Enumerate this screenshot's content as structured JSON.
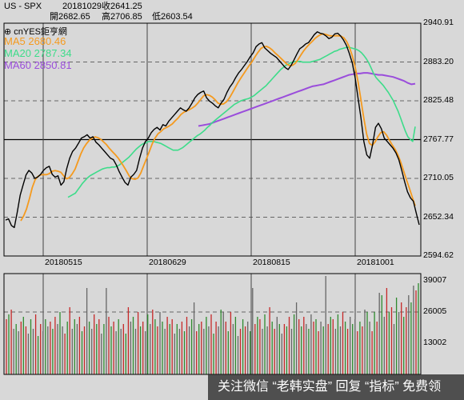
{
  "header": {
    "symbol": "US - SPX",
    "date": "20181029",
    "close": "收2641.25",
    "open": "開2682.65",
    "high": "高2706.85",
    "low": "低2603.54"
  },
  "brand": "⊕ cnYES鉅亨網",
  "watermark": "关注微信 “老韩实盘” 回复 “指标” 免费领",
  "chart_data": [
    {
      "type": "line",
      "y_ticks": [
        "2940.91",
        "2883.20",
        "2825.48",
        "2767.77",
        "2710.05",
        "2652.34",
        "2594.62"
      ],
      "x_ticks": [
        "20180515",
        "20180629",
        "20180815",
        "20181001"
      ],
      "ylim": [
        2594.62,
        2940.91
      ],
      "series": [
        {
          "name": "MA5",
          "value": "2680.46",
          "color": "#f59a1e"
        },
        {
          "name": "MA20",
          "value": "2787.34",
          "color": "#3ddc8a"
        },
        {
          "name": "MA60",
          "value": "2850.81",
          "color": "#9a4ddb"
        },
        {
          "name": "",
          "color": "#000000",
          "role": "price",
          "values": [
            2648,
            2650,
            2640,
            2637,
            2660,
            2685,
            2700,
            2715,
            2722,
            2718,
            2710,
            2712,
            2716,
            2722,
            2726,
            2728,
            2716,
            2712,
            2714,
            2700,
            2705,
            2725,
            2740,
            2750,
            2755,
            2762,
            2770,
            2772,
            2775,
            2770,
            2772,
            2764,
            2760,
            2755,
            2750,
            2745,
            2740,
            2738,
            2730,
            2720,
            2712,
            2704,
            2700,
            2712,
            2716,
            2722,
            2740,
            2755,
            2765,
            2770,
            2778,
            2783,
            2786,
            2782,
            2790,
            2788,
            2795,
            2800,
            2805,
            2810,
            2815,
            2812,
            2810,
            2815,
            2822,
            2830,
            2835,
            2838,
            2840,
            2830,
            2825,
            2822,
            2818,
            2815,
            2822,
            2828,
            2838,
            2846,
            2852,
            2860,
            2867,
            2872,
            2878,
            2884,
            2891,
            2897,
            2906,
            2910,
            2912,
            2904,
            2900,
            2896,
            2893,
            2890,
            2885,
            2880,
            2875,
            2872,
            2878,
            2886,
            2895,
            2903,
            2906,
            2910,
            2912,
            2918,
            2924,
            2928,
            2926,
            2925,
            2922,
            2918,
            2920,
            2925,
            2926,
            2922,
            2916,
            2908,
            2896,
            2882,
            2860,
            2830,
            2800,
            2765,
            2745,
            2740,
            2760,
            2786,
            2792,
            2784,
            2770,
            2765,
            2760,
            2755,
            2748,
            2738,
            2722,
            2705,
            2690,
            2681,
            2676,
            2658,
            2641
          ]
        },
        {
          "name": "",
          "color": "#3ddc8a",
          "role": "ma20",
          "values": [
            2682,
            2684,
            2686,
            2688,
            2693,
            2698,
            2703,
            2707,
            2711,
            2714,
            2716,
            2718,
            2720,
            2722,
            2724,
            2725,
            2726,
            2726,
            2727,
            2727,
            2728,
            2730,
            2733,
            2736,
            2739,
            2742,
            2746,
            2750,
            2754,
            2757,
            2760,
            2762,
            2763,
            2765,
            2765,
            2765,
            2764,
            2763,
            2762,
            2760,
            2758,
            2756,
            2754,
            2752,
            2752,
            2752,
            2754,
            2756,
            2759,
            2762,
            2765,
            2768,
            2771,
            2774,
            2776,
            2779,
            2782,
            2786,
            2789,
            2793,
            2796,
            2799,
            2802,
            2805,
            2808,
            2811,
            2814,
            2817,
            2820,
            2822,
            2824,
            2826,
            2827,
            2828,
            2829,
            2831,
            2833,
            2836,
            2839,
            2842,
            2845,
            2848,
            2852,
            2856,
            2860,
            2864,
            2868,
            2872,
            2875,
            2878,
            2880,
            2882,
            2883,
            2884,
            2884,
            2884,
            2883,
            2883,
            2883,
            2883,
            2884,
            2885,
            2886,
            2887,
            2889,
            2891,
            2893,
            2895,
            2897,
            2899,
            2900,
            2902,
            2903,
            2904,
            2905,
            2905,
            2904,
            2903,
            2902,
            2900,
            2897,
            2893,
            2888,
            2882,
            2874,
            2866,
            2860,
            2856,
            2852,
            2848,
            2843,
            2838,
            2832,
            2826,
            2818,
            2810,
            2800,
            2790,
            2780,
            2772,
            2768,
            2765,
            2787
          ]
        },
        {
          "name": "",
          "color": "#9a4ddb",
          "role": "ma60",
          "values": [
            2788,
            2789,
            2790,
            2791,
            2793,
            2795,
            2797,
            2799,
            2801,
            2803,
            2805,
            2807,
            2809,
            2811,
            2813,
            2815,
            2817,
            2819,
            2821,
            2823,
            2825,
            2827,
            2829,
            2831,
            2833,
            2835,
            2837,
            2839,
            2841,
            2843,
            2845,
            2847,
            2848,
            2849,
            2850,
            2852,
            2854,
            2856,
            2858,
            2860,
            2862,
            2864,
            2865,
            2866,
            2866,
            2867,
            2867,
            2866,
            2865,
            2864,
            2864,
            2863,
            2862,
            2861,
            2859,
            2857,
            2855,
            2852,
            2850,
            2851
          ]
        }
      ]
    },
    {
      "type": "bar",
      "y_ticks": [
        "39007",
        "26005",
        "13002"
      ],
      "ylim": [
        0,
        42000
      ],
      "values": [
        23000,
        25000,
        27000,
        19000,
        21000,
        18000,
        22000,
        24000,
        20000,
        17000,
        23000,
        19000,
        25000,
        16000,
        21000,
        18000,
        23000,
        20000,
        22000,
        19000,
        24000,
        21000,
        26000,
        20000,
        17000,
        22000,
        28000,
        19000,
        23000,
        21000,
        24000,
        18000,
        20000,
        36000,
        22000,
        19000,
        25000,
        21000,
        23000,
        17000,
        21000,
        36000,
        24000,
        20000,
        22000,
        18000,
        23000,
        19000,
        21000,
        17000,
        28000,
        22000,
        24000,
        19000,
        26000,
        20000,
        22000,
        18000,
        25000,
        21000,
        27000,
        23000,
        20000,
        26000,
        22000,
        19000,
        24000,
        21000,
        23000,
        17000,
        21000,
        19000,
        22000,
        18000,
        24000,
        20000,
        23000,
        30000,
        18000,
        21000,
        22000,
        19000,
        24000,
        20000,
        25000,
        17000,
        22000,
        20000,
        27000,
        26000,
        22000,
        18000,
        26000,
        21000,
        24000,
        16000,
        19000,
        23000,
        20000,
        22000,
        18000,
        36000,
        21000,
        24000,
        23000,
        19000,
        25000,
        20000,
        28000,
        22000,
        19000,
        24000,
        21000,
        17000,
        21000,
        20000,
        24000,
        19000,
        25000,
        30000,
        23000,
        20000,
        24000,
        21000,
        19000,
        25000,
        22000,
        23000,
        18000,
        22000,
        20000,
        41000,
        21000,
        24000,
        23000,
        19000,
        25000,
        20000,
        26000,
        22000,
        19000,
        24000,
        21000,
        23000,
        18000,
        22000,
        20000,
        27000,
        26000,
        22000,
        18000,
        26000,
        22000,
        34000,
        33000,
        24000,
        36000,
        26000,
        28000,
        21000,
        32000,
        26000,
        30000,
        24000,
        28000,
        33000,
        30000,
        37000,
        35000,
        38000
      ]
    }
  ]
}
